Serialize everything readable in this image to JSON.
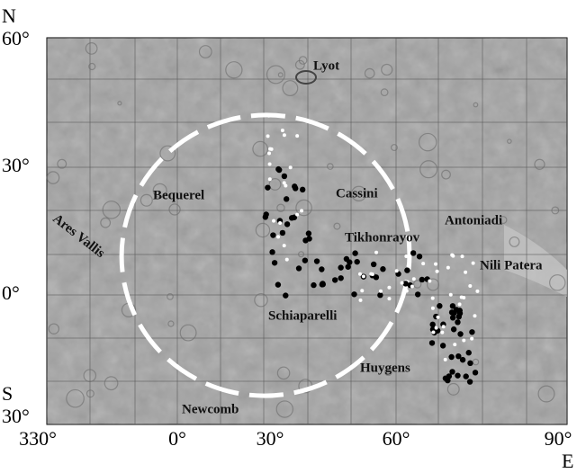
{
  "axes": {
    "north": "N",
    "south": "S",
    "east": "E",
    "lat_labels": [
      "60°",
      "30°",
      "0°",
      "30°"
    ],
    "lon_labels": [
      "330°",
      "0°",
      "30°",
      "60°",
      "90°"
    ]
  },
  "places": [
    "Lyot",
    "Cassini",
    "Bequerel",
    "Antoniadi",
    "Tikhonrayov",
    "Nili Patera",
    "Ares Vallis",
    "Schiaparelli",
    "Huygens",
    "Newcomb"
  ]
}
